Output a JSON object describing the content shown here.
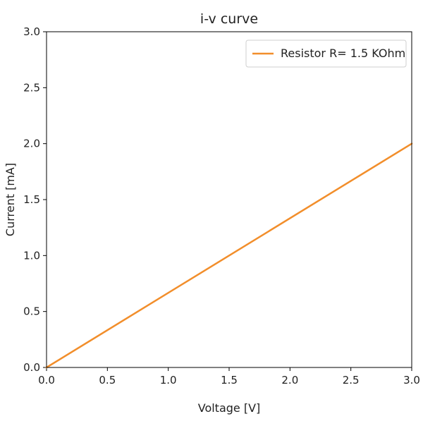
{
  "chart_data": {
    "type": "line",
    "title": "i-v curve",
    "xlabel": "Voltage [V]",
    "ylabel": "Current [mA]",
    "xlim": [
      0.0,
      3.0
    ],
    "ylim": [
      0.0,
      3.0
    ],
    "xticks": [
      "0.0",
      "0.5",
      "1.0",
      "1.5",
      "2.0",
      "2.5",
      "3.0"
    ],
    "yticks": [
      "0.0",
      "0.5",
      "1.0",
      "1.5",
      "2.0",
      "2.5",
      "3.0"
    ],
    "grid": false,
    "legend_position": "top-right",
    "series": [
      {
        "name": "Resistor R= 1.5 KOhm",
        "color": "#f28e2b",
        "x": [
          0.0,
          3.0
        ],
        "y": [
          0.0,
          2.0
        ]
      }
    ]
  }
}
